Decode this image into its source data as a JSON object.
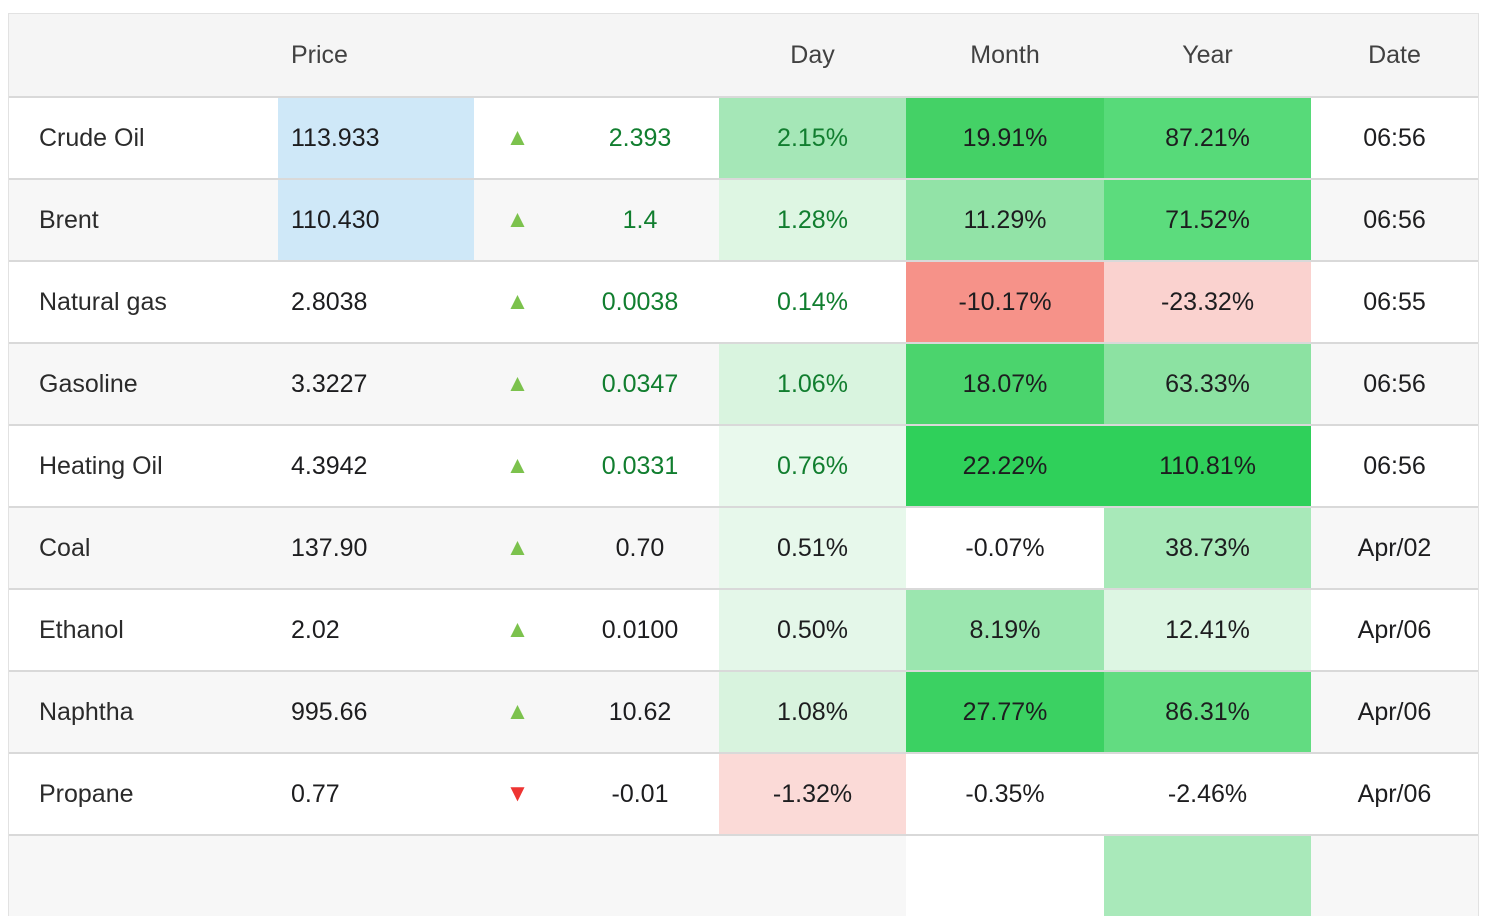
{
  "palette": {
    "green_text": "#117e2f",
    "black_text": "#1d1d1f",
    "arrow_up": "#7cc24d",
    "arrow_down": "#ee3432",
    "price_highlight": "#cfe8f8",
    "row_stripe": "#f7f7f7",
    "header_bg": "#f5f5f5",
    "border": "#d9d9d9"
  },
  "table": {
    "columns": [
      {
        "key": "name",
        "label": ""
      },
      {
        "key": "price",
        "label": "Price"
      },
      {
        "key": "arrow",
        "label": ""
      },
      {
        "key": "change",
        "label": ""
      },
      {
        "key": "day",
        "label": "Day"
      },
      {
        "key": "month",
        "label": "Month"
      },
      {
        "key": "year",
        "label": "Year"
      },
      {
        "key": "date",
        "label": "Date"
      }
    ],
    "rows": [
      {
        "name": "Crude Oil",
        "price": "113.933",
        "price_highlighted": true,
        "direction": "up",
        "change": "2.393",
        "live": true,
        "day": "2.15%",
        "day_bg": "#a5e7b7",
        "month": "19.91%",
        "month_bg": "#44d166",
        "year": "87.21%",
        "year_bg": "#57da79",
        "date": "06:56"
      },
      {
        "name": "Brent",
        "price": "110.430",
        "price_highlighted": true,
        "direction": "up",
        "change": "1.4",
        "live": true,
        "day": "1.28%",
        "day_bg": "#def6e3",
        "month": "11.29%",
        "month_bg": "#92e3a7",
        "year": "71.52%",
        "year_bg": "#5cdc7d",
        "date": "06:56"
      },
      {
        "name": "Natural gas",
        "price": "2.8038",
        "price_highlighted": false,
        "direction": "up",
        "change": "0.0038",
        "live": true,
        "day": "0.14%",
        "day_bg": "",
        "month": "-10.17%",
        "month_bg": "#f69289",
        "year": "-23.32%",
        "year_bg": "#fad2cf",
        "date": "06:55"
      },
      {
        "name": "Gasoline",
        "price": "3.3227",
        "price_highlighted": false,
        "direction": "up",
        "change": "0.0347",
        "live": true,
        "day": "1.06%",
        "day_bg": "#d9f4df",
        "month": "18.07%",
        "month_bg": "#4bd46d",
        "year": "63.33%",
        "year_bg": "#8ce2a2",
        "date": "06:56"
      },
      {
        "name": "Heating Oil",
        "price": "4.3942",
        "price_highlighted": false,
        "direction": "up",
        "change": "0.0331",
        "live": true,
        "day": "0.76%",
        "day_bg": "#e9f9ed",
        "month": "22.22%",
        "month_bg": "#2fd05a",
        "year": "110.81%",
        "year_bg": "#2fd05a",
        "date": "06:56"
      },
      {
        "name": "Coal",
        "price": "137.90",
        "price_highlighted": false,
        "direction": "up",
        "change": "0.70",
        "live": false,
        "day": "0.51%",
        "day_bg": "#e7f8eb",
        "month": "-0.07%",
        "month_bg": "#ffffff",
        "year": "38.73%",
        "year_bg": "#a8e9b9",
        "date": "Apr/02"
      },
      {
        "name": "Ethanol",
        "price": "2.02",
        "price_highlighted": false,
        "direction": "up",
        "change": "0.0100",
        "live": false,
        "day": "0.50%",
        "day_bg": "#e4f7e9",
        "month": "8.19%",
        "month_bg": "#9be6af",
        "year": "12.41%",
        "year_bg": "#ddf6e3",
        "date": "Apr/06"
      },
      {
        "name": "Naphtha",
        "price": "995.66",
        "price_highlighted": false,
        "direction": "up",
        "change": "10.62",
        "live": false,
        "day": "1.08%",
        "day_bg": "#d8f3de",
        "month": "27.77%",
        "month_bg": "#3bd162",
        "year": "86.31%",
        "year_bg": "#62dc81",
        "date": "Apr/06"
      },
      {
        "name": "Propane",
        "price": "0.77",
        "price_highlighted": false,
        "direction": "down",
        "change": "-0.01",
        "live": false,
        "day": "-1.32%",
        "day_bg": "#fbdad7",
        "month": "-0.35%",
        "month_bg": "#ffffff",
        "year": "-2.46%",
        "year_bg": "#ffffff",
        "date": "Apr/06"
      },
      {
        "name": "",
        "price": "",
        "price_highlighted": false,
        "direction": "",
        "change": "",
        "live": false,
        "day": "",
        "day_bg": "",
        "month": "",
        "month_bg": "#ffffff",
        "year": "",
        "year_bg": "#a9e9ba",
        "date": ""
      }
    ]
  }
}
